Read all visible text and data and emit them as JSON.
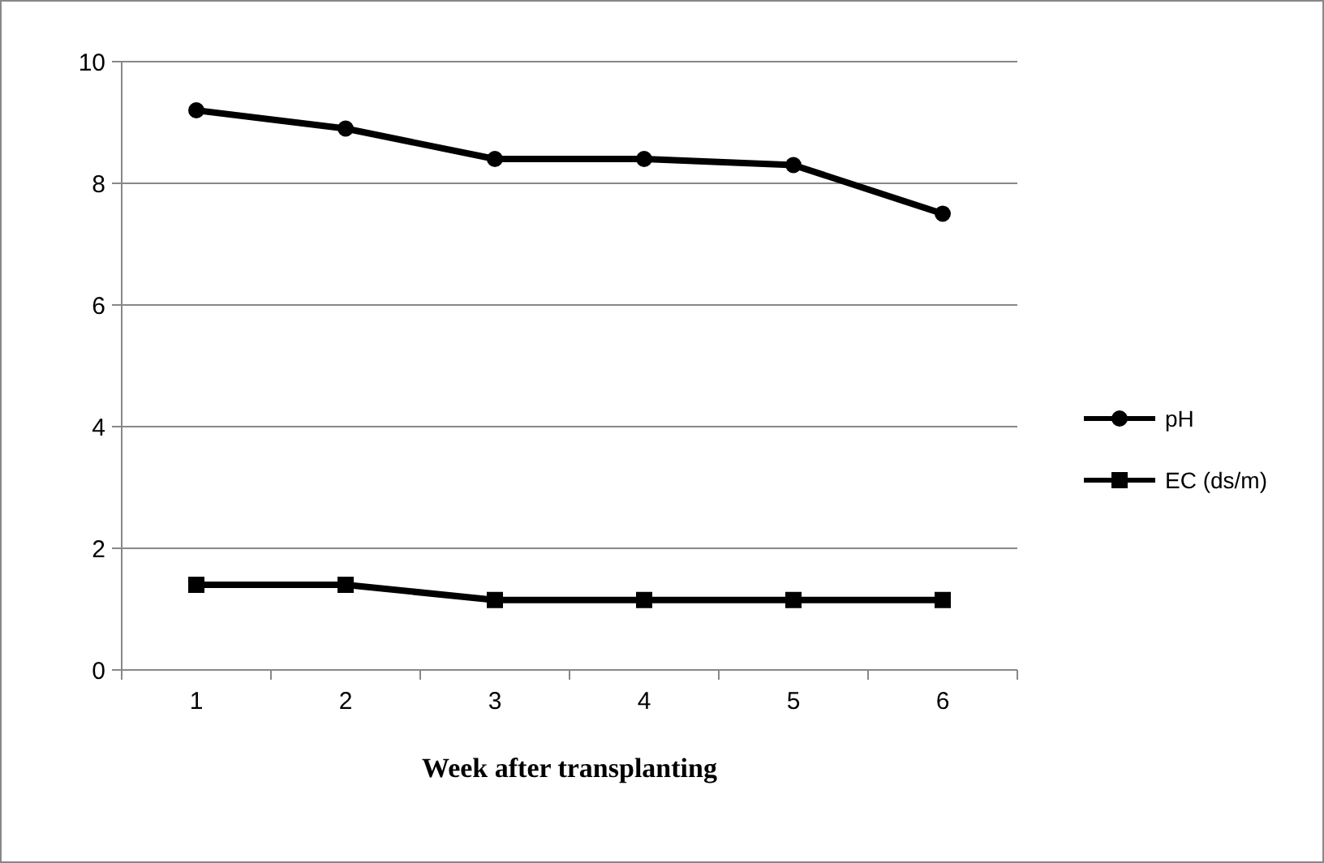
{
  "chart_data": {
    "type": "line",
    "xlabel": "Week after transplanting",
    "categories": [
      "1",
      "2",
      "3",
      "4",
      "5",
      "6"
    ],
    "series": [
      {
        "name": "pH",
        "color": "#000000",
        "marker": "circle",
        "values": [
          9.2,
          8.9,
          8.4,
          8.4,
          8.3,
          7.5
        ]
      },
      {
        "name": "EC (ds/m)",
        "color": "#000000",
        "marker": "square",
        "values": [
          1.4,
          1.4,
          1.15,
          1.15,
          1.15,
          1.15
        ]
      }
    ],
    "ylim": [
      0,
      10
    ],
    "yticks": [
      0,
      2,
      4,
      6,
      8,
      10
    ],
    "grid": "y",
    "legend": "right"
  }
}
